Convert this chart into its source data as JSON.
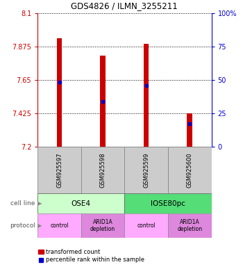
{
  "title": "GDS4826 / ILMN_3255211",
  "samples": [
    "GSM925597",
    "GSM925598",
    "GSM925599",
    "GSM925600"
  ],
  "bar_bottom": 7.2,
  "bar_tops": [
    7.93,
    7.815,
    7.895,
    7.425
  ],
  "percentile_values": [
    7.635,
    7.505,
    7.615,
    7.355
  ],
  "ylim_left": [
    7.2,
    8.1
  ],
  "ylim_right": [
    0,
    100
  ],
  "yticks_left": [
    7.2,
    7.425,
    7.65,
    7.875,
    8.1
  ],
  "yticks_right": [
    0,
    25,
    50,
    75,
    100
  ],
  "ytick_labels_left": [
    "7.2",
    "7.425",
    "7.65",
    "7.875",
    "8.1"
  ],
  "ytick_labels_right": [
    "0",
    "25",
    "50",
    "75",
    "100%"
  ],
  "bar_color": "#cc0000",
  "percentile_color": "#0000cc",
  "left_axis_color": "#cc0000",
  "right_axis_color": "#0000cc",
  "gsm_box_color": "#cccccc",
  "cell_line_color_ose4": "#ccffcc",
  "cell_line_color_iose": "#55dd77",
  "protocol_color_control": "#ffaaff",
  "protocol_color_arid": "#dd88dd",
  "protocol_labels": [
    "control",
    "ARID1A\ndepletion",
    "control",
    "ARID1A\ndepletion"
  ],
  "cell_line_labels_grouped": [
    "OSE4",
    "IOSE80pc"
  ],
  "background_color": "#ffffff",
  "bar_width": 0.12
}
